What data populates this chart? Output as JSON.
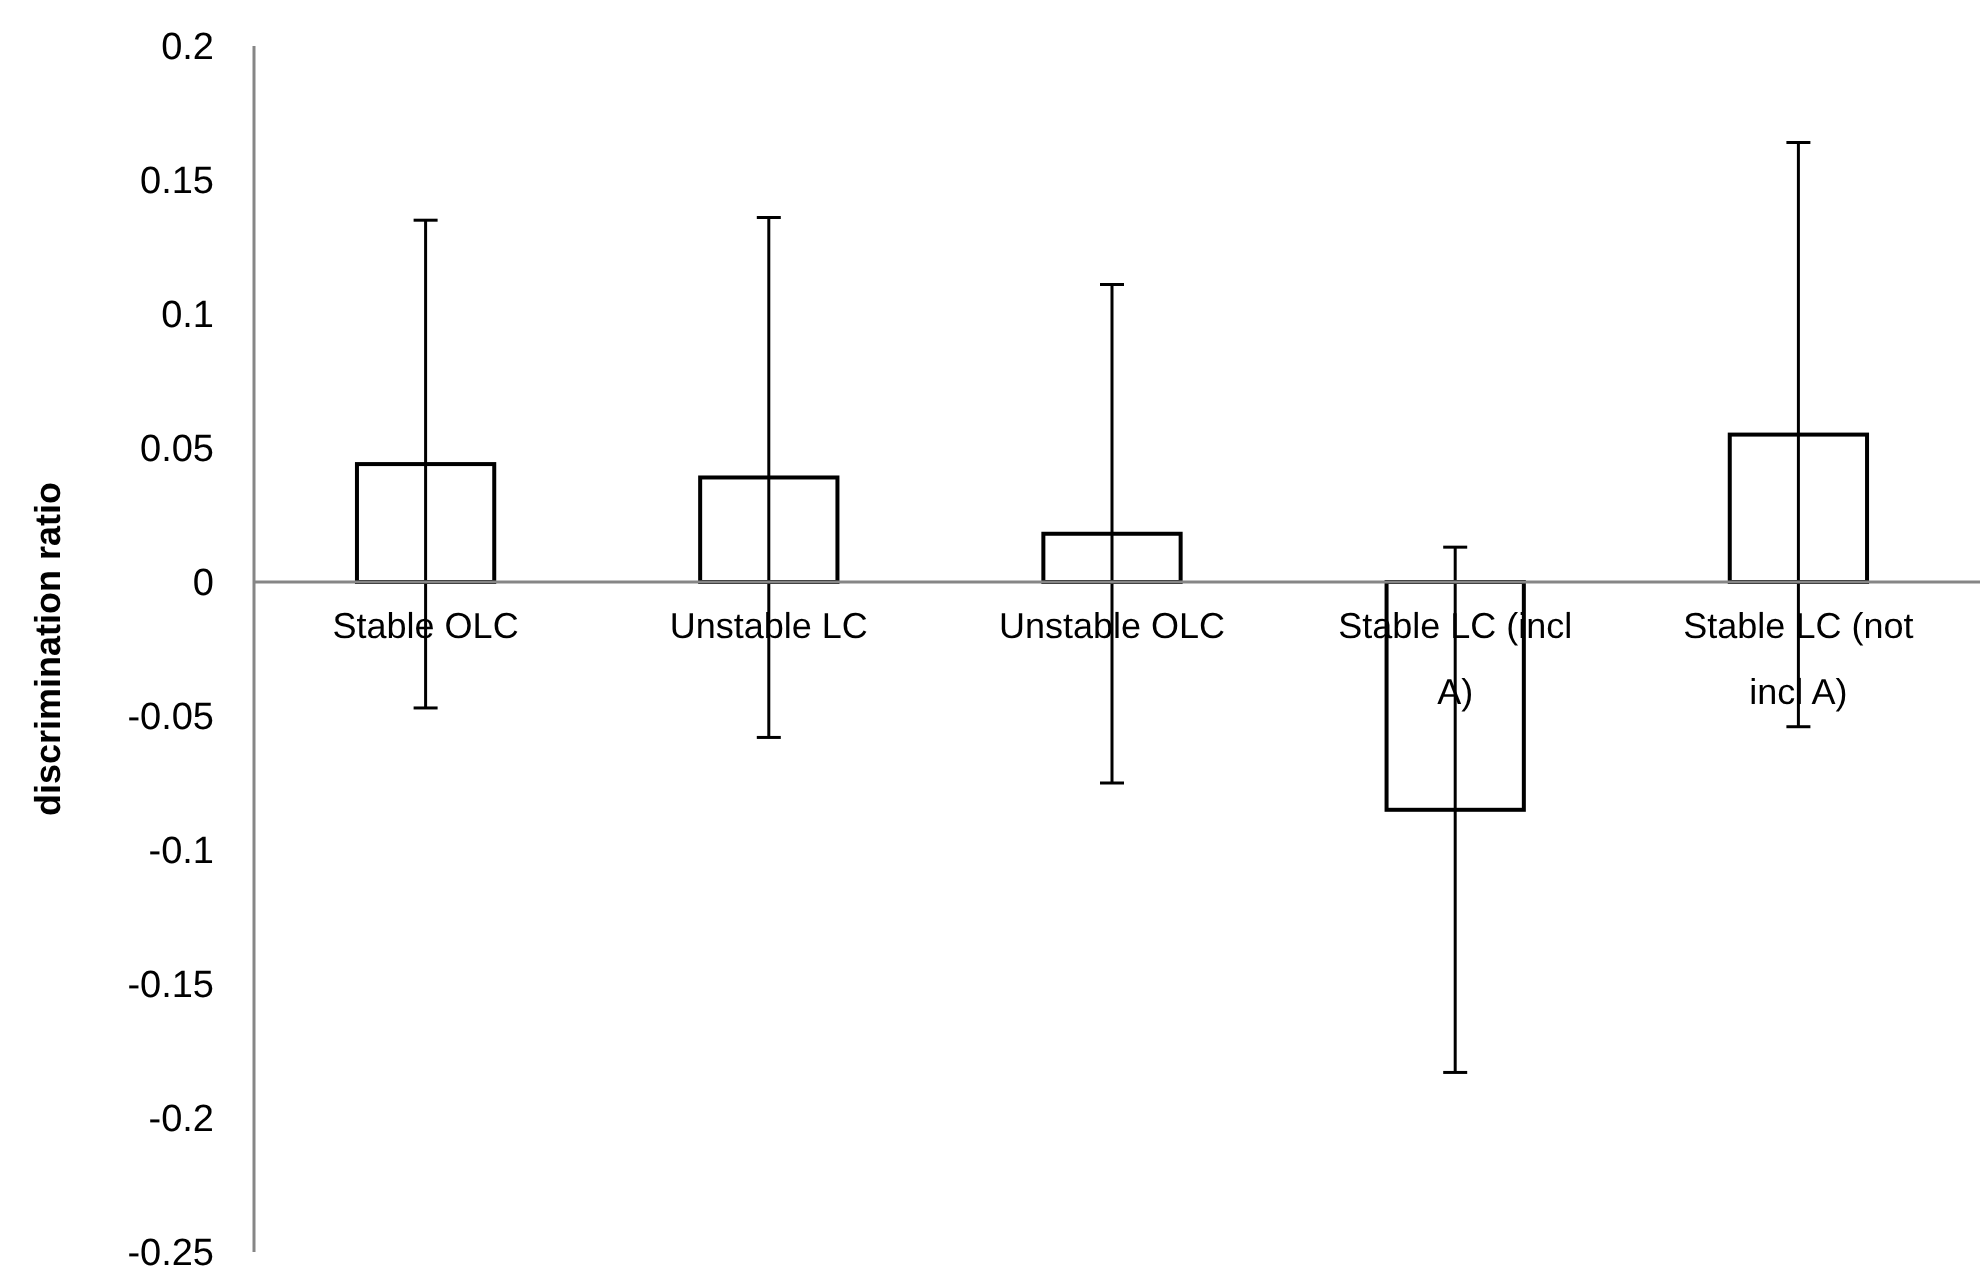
{
  "chart_data": {
    "type": "bar",
    "ylabel": "discrimination ratio",
    "categories": [
      "Stable OLC",
      "Unstable LC",
      "Unstable OLC",
      "Stable LC (incl A)",
      "Stable LC (not incl A)"
    ],
    "values": [
      0.044,
      0.039,
      0.018,
      -0.085,
      0.055
    ],
    "errors": [
      0.091,
      0.097,
      0.093,
      0.098,
      0.109
    ],
    "color": "#ffffff",
    "ylim": [
      -0.25,
      0.2
    ],
    "yticks": [
      -0.25,
      -0.2,
      -0.15,
      -0.1,
      -0.05,
      0,
      0.05,
      0.1,
      0.15,
      0.2
    ],
    "grid": false
  }
}
